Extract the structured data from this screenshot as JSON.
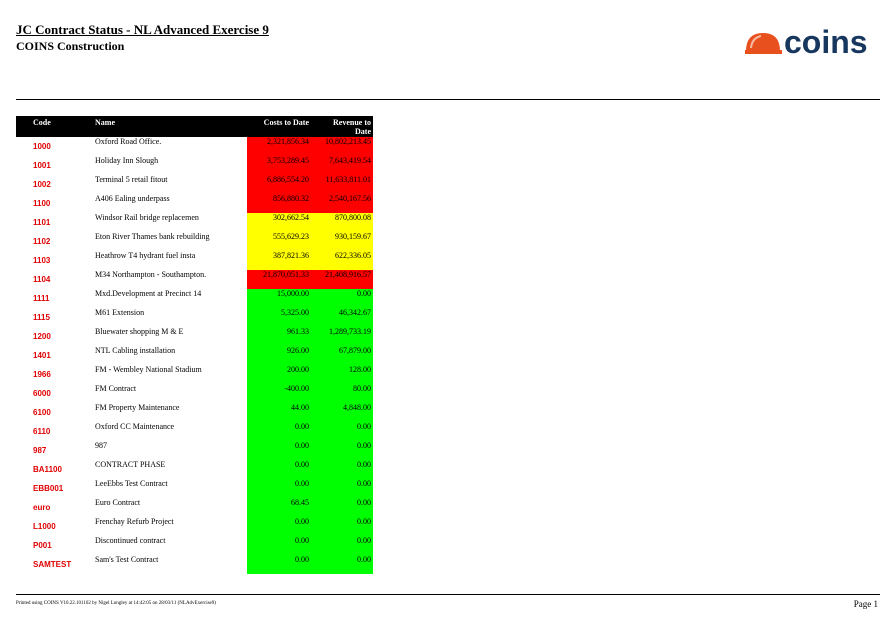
{
  "report": {
    "title": "JC Contract Status - NL Advanced Exercise 9",
    "company": "COINS Construction",
    "logo_text": "coins",
    "footer_left": "Printed using COINS V10.22.101102 by Nigel Longley at 14:42:05 on 28/03/11 (NLAdvExercise9)",
    "footer_right": "Page 1"
  },
  "colors": {
    "red": "#ff0000",
    "yellow": "#ffff00",
    "green": "#00ff00",
    "code": "#e00000",
    "logo": "#17375e",
    "helmet": "#e8501e"
  },
  "table": {
    "headers": {
      "code": "Code",
      "name": "Name",
      "costs": "Costs to Date",
      "revenue_line1": "Revenue to",
      "revenue_line2": "Date"
    },
    "rows": [
      {
        "code": "1000",
        "name": "Oxford Road Office.",
        "costs": "2,321,856.34",
        "revenue": "10,802,213.45",
        "status": "red"
      },
      {
        "code": "1001",
        "name": "Holiday Inn Slough",
        "costs": "3,753,289.45",
        "revenue": "7,643,419.54",
        "status": "red"
      },
      {
        "code": "1002",
        "name": "Terminal 5 retail fitout",
        "costs": "6,886,554.20",
        "revenue": "11,633,811.01",
        "status": "red"
      },
      {
        "code": "1100",
        "name": "A406 Ealing underpass",
        "costs": "856,880.32",
        "revenue": "2,540,167.56",
        "status": "red"
      },
      {
        "code": "1101",
        "name": "Windsor Rail bridge replacemen",
        "costs": "302,662.54",
        "revenue": "870,800.08",
        "status": "yellow"
      },
      {
        "code": "1102",
        "name": "Eton River Thames bank rebuilding",
        "costs": "555,629.23",
        "revenue": "930,159.67",
        "status": "yellow"
      },
      {
        "code": "1103",
        "name": "Heathrow T4 hydrant fuel insta",
        "costs": "387,821.36",
        "revenue": "622,336.05",
        "status": "yellow"
      },
      {
        "code": "1104",
        "name": "M34 Northampton - Southampton.",
        "costs": "21,870,051.33",
        "revenue": "21,408,916.57",
        "status": "red"
      },
      {
        "code": "1111",
        "name": "Mxd.Development at Precinct 14",
        "costs": "15,000.00",
        "revenue": "0.00",
        "status": "green"
      },
      {
        "code": "1115",
        "name": "M61 Extension",
        "costs": "5,325.00",
        "revenue": "46,342.67",
        "status": "green"
      },
      {
        "code": "1200",
        "name": "Bluewater shopping M & E",
        "costs": "961.33",
        "revenue": "1,289,733.19",
        "status": "green"
      },
      {
        "code": "1401",
        "name": "NTL Cabling installation",
        "costs": "926.00",
        "revenue": "67,879.00",
        "status": "green"
      },
      {
        "code": "1966",
        "name": "FM - Wembley National Stadium",
        "costs": "200.00",
        "revenue": "128.00",
        "status": "green"
      },
      {
        "code": "6000",
        "name": "FM Contract",
        "costs": "-400.00",
        "revenue": "80.00",
        "status": "green"
      },
      {
        "code": "6100",
        "name": "FM Property Maintenance",
        "costs": "44.00",
        "revenue": "4,848.00",
        "status": "green"
      },
      {
        "code": "6110",
        "name": "Oxford CC Maintenance",
        "costs": "0.00",
        "revenue": "0.00",
        "status": "green"
      },
      {
        "code": "987",
        "name": "987",
        "costs": "0.00",
        "revenue": "0.00",
        "status": "green"
      },
      {
        "code": "BA1100",
        "name": "CONTRACT PHASE",
        "costs": "0.00",
        "revenue": "0.00",
        "status": "green"
      },
      {
        "code": "EBB001",
        "name": "LeeEbbs Test Contract",
        "costs": "0.00",
        "revenue": "0.00",
        "status": "green"
      },
      {
        "code": "euro",
        "name": "Euro Contract",
        "costs": "68.45",
        "revenue": "0.00",
        "status": "green"
      },
      {
        "code": "L1000",
        "name": "Frenchay Refurb Project",
        "costs": "0.00",
        "revenue": "0.00",
        "status": "green"
      },
      {
        "code": "P001",
        "name": "Discontinued contract",
        "costs": "0.00",
        "revenue": "0.00",
        "status": "green"
      },
      {
        "code": "SAMTEST",
        "name": "Sam's Test Contract",
        "costs": "0.00",
        "revenue": "0.00",
        "status": "green"
      }
    ]
  }
}
